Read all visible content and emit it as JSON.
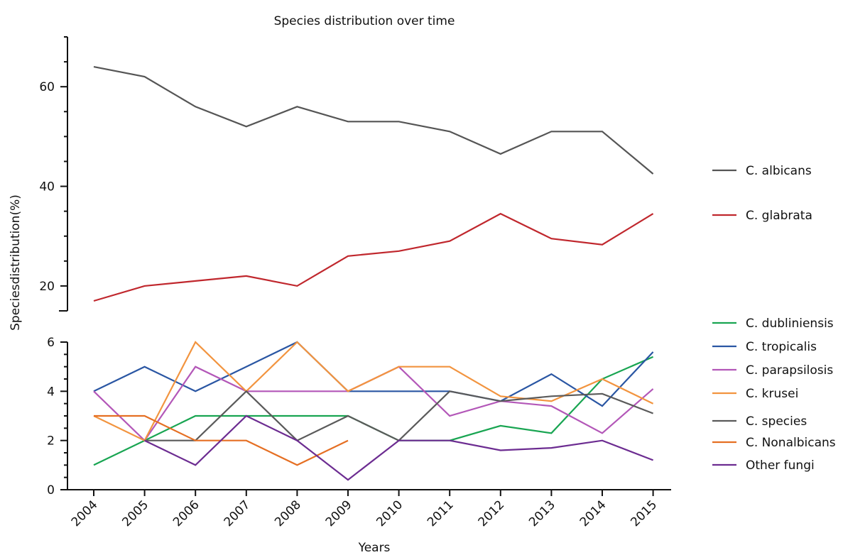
{
  "chart_data": {
    "type": "line",
    "title": "Species distribution over time",
    "xlabel": "Years",
    "ylabel": "Speciesdistribution(%)",
    "categories": [
      "2004",
      "2005",
      "2006",
      "2007",
      "2008",
      "2009",
      "2010",
      "2011",
      "2012",
      "2013",
      "2014",
      "2015"
    ],
    "y_axis_break": true,
    "upper_segment": {
      "ylim": [
        15,
        70
      ],
      "ticks": [
        "20",
        "40",
        "60"
      ]
    },
    "lower_segment": {
      "ylim": [
        0,
        6
      ],
      "ticks": [
        "0",
        "2",
        "4",
        "6"
      ]
    },
    "grid": false,
    "legend_position": "right",
    "series": [
      {
        "name": "C. albicans",
        "color": "#555555",
        "segment": "upper",
        "values": [
          64,
          62,
          56,
          52,
          56,
          53,
          53,
          51,
          46.5,
          51,
          51,
          42.5
        ]
      },
      {
        "name": "C. glabrata",
        "color": "#c0272d",
        "segment": "upper",
        "values": [
          17,
          20,
          21,
          22,
          20,
          26,
          27,
          29,
          34.5,
          29.5,
          28.3,
          34.5
        ]
      },
      {
        "name": "C. dubliniensis",
        "color": "#19a552",
        "segment": "lower",
        "values": [
          1,
          2,
          3,
          3,
          3,
          3,
          2,
          2,
          2.6,
          2.3,
          4.5,
          5.4
        ]
      },
      {
        "name": "C. tropicalis",
        "color": "#2a56a3",
        "segment": "lower",
        "values": [
          4,
          5,
          4,
          5,
          6,
          4,
          4,
          4,
          3.6,
          4.7,
          3.4,
          5.6
        ]
      },
      {
        "name": "C. parapsilosis",
        "color": "#b357b8",
        "segment": "lower",
        "values": [
          4,
          2,
          5,
          4,
          4,
          4,
          5,
          3,
          3.6,
          3.4,
          2.3,
          4.1
        ]
      },
      {
        "name": "C. krusei",
        "color": "#f2943f",
        "segment": "lower",
        "values": [
          3,
          2,
          6,
          4,
          6,
          4,
          5,
          5,
          3.8,
          3.6,
          4.5,
          3.5
        ]
      },
      {
        "name": "C. species",
        "color": "#5a5a5a",
        "segment": "lower",
        "values": [
          null,
          2,
          2,
          4,
          2,
          3,
          2,
          4,
          3.6,
          3.8,
          3.9,
          3.1
        ]
      },
      {
        "name": "C. Nonalbicans",
        "color": "#e56f23",
        "segment": "lower",
        "values": [
          3,
          3,
          2,
          2,
          1,
          2,
          null,
          null,
          null,
          null,
          null,
          null
        ]
      },
      {
        "name": "Other fungi",
        "color": "#6c2c91",
        "segment": "lower",
        "values": [
          null,
          2,
          1,
          3,
          2,
          0.4,
          2,
          2,
          1.6,
          1.7,
          2,
          1.2
        ]
      }
    ]
  }
}
